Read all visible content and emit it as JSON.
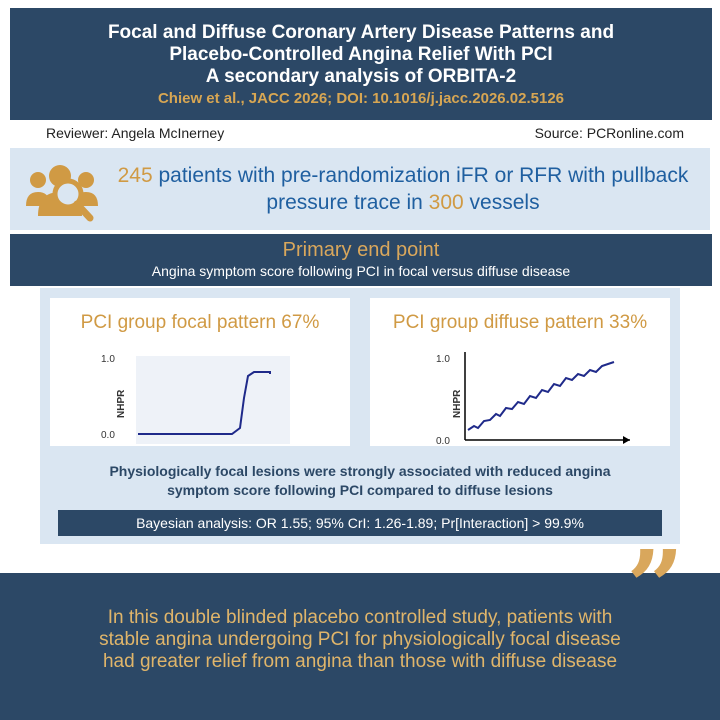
{
  "header": {
    "title_line1": "Focal and Diffuse Coronary Artery Disease Patterns and",
    "title_line2": "Placebo-Controlled Angina Relief With PCI",
    "title_line3": "A secondary analysis of ORBITA-2",
    "citation": "Chiew et al., JACC 2026; DOI: 10.1016/j.jacc.2026.02.5126"
  },
  "meta": {
    "reviewer": "Reviewer: Angela McInerney",
    "source": "Source: PCRonline.com"
  },
  "population": {
    "icon": "patients-search-icon",
    "patients_count": "245",
    "text_part1": " patients with pre-randomization iFR or RFR with pullback",
    "text_part2": "pressure trace in ",
    "vessels_count": "300",
    "text_part3": " vessels"
  },
  "primary_endpoint": {
    "heading": "Primary end point",
    "subheading": "Angina symptom score following PCI in focal versus diffuse disease"
  },
  "charts": {
    "focal": {
      "title": "PCI group focal pattern 67%",
      "ylabel": "NHPR",
      "y_top": "1.0",
      "y_bottom": "0.0"
    },
    "diffuse": {
      "title": "PCI group diffuse pattern 33%",
      "ylabel": "NHPR",
      "y_top": "1.0",
      "y_bottom": "0.0"
    }
  },
  "conclusion": {
    "line1": "Physiologically focal lesions were strongly associated with reduced angina",
    "line2": "symptom score following PCI compared to diffuse lesions"
  },
  "bayesian": "Bayesian analysis: OR 1.55; 95% CrI: 1.26-1.89; Pr[Interaction] > 99.9%",
  "footer": {
    "quote_icon": "quote-icon",
    "line1": "In this double blinded placebo controlled study, patients with",
    "line2": "stable angina undergoing PCI for physiologically focal disease",
    "line3": "had greater relief from angina than those with diffuse disease"
  },
  "colors": {
    "navy": "#2c4866",
    "gold": "#d09a44",
    "light_blue": "#dae6f2",
    "text_blue": "#1f5fa0",
    "trace": "#1f2a8a"
  }
}
